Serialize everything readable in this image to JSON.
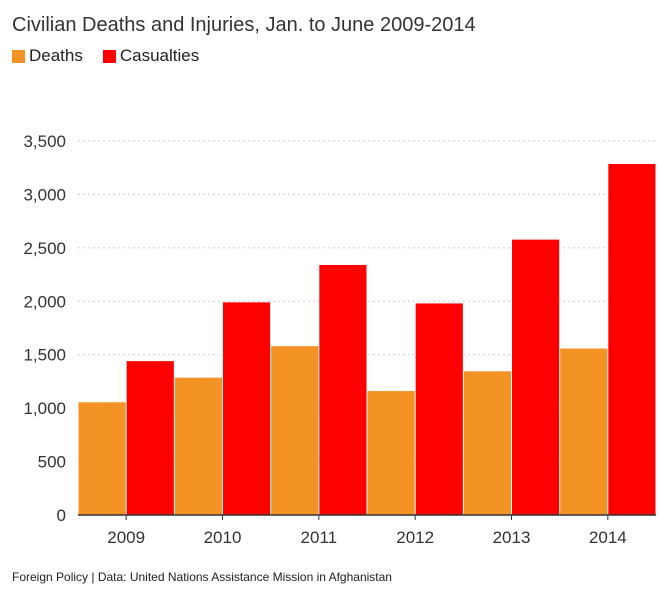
{
  "chart_data": {
    "type": "bar",
    "title": "Civilian Deaths and Injuries, Jan. to June 2009-2014",
    "categories": [
      "2009",
      "2010",
      "2011",
      "2012",
      "2013",
      "2014"
    ],
    "series": [
      {
        "name": "Deaths",
        "color": "#f39325",
        "values": [
          1055,
          1285,
          1580,
          1160,
          1345,
          1558
        ]
      },
      {
        "name": "Casualties",
        "color": "#ff0000",
        "values": [
          1440,
          1990,
          2340,
          1980,
          2577,
          3285
        ]
      }
    ],
    "ylim": [
      0,
      3500
    ],
    "yticks": [
      0,
      500,
      1000,
      1500,
      2000,
      2500,
      3000,
      3500
    ],
    "ytick_labels": [
      "0",
      "500",
      "1,000",
      "1,500",
      "2,000",
      "2,500",
      "3,000",
      "3,500"
    ],
    "grid": true,
    "legend": "top-left",
    "xlabel": "",
    "ylabel": ""
  },
  "source": "Foreign Policy | Data: United Nations Assistance Mission in Afghanistan"
}
